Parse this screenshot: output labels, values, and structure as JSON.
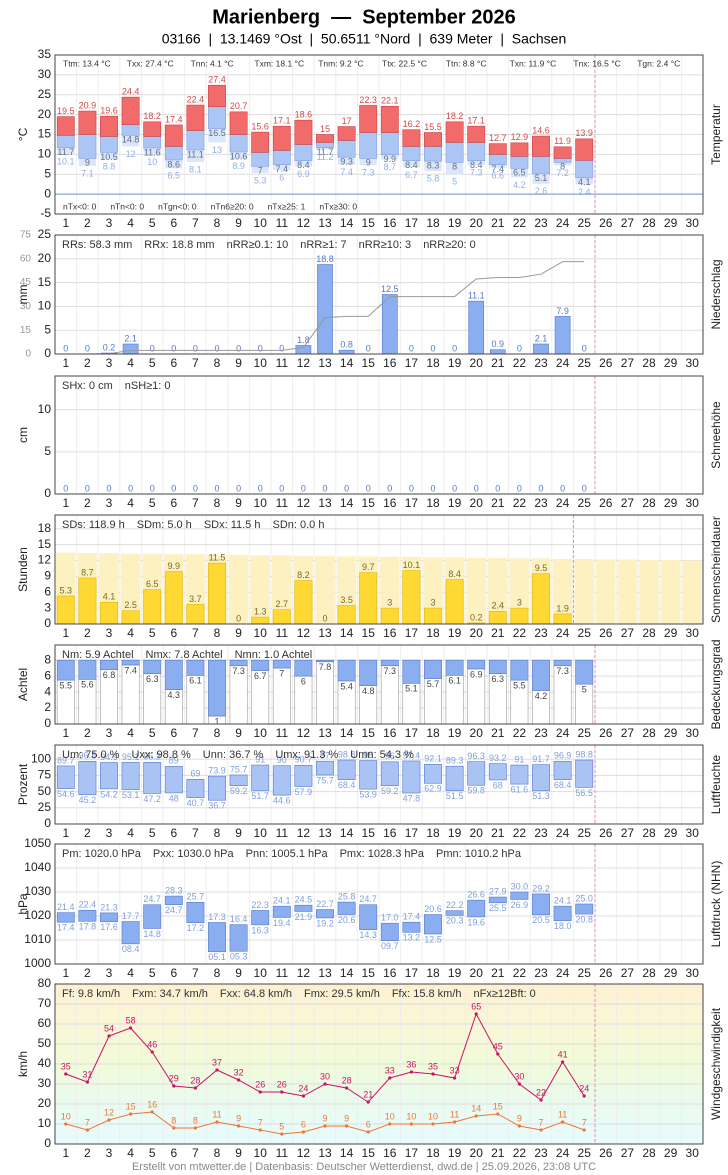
{
  "title": "Marienberg  —  September 2026",
  "subtitle": "03166  |  13.1469 °Ost  |  50.6511 °Nord  |  639 Meter  |  Sachsen",
  "footer": "Erstellt von mtwetter.de | Datenbasis: Deutscher Wetterdienst, dwd.de | 25.09.2026, 23:08 UTC",
  "chart_data": [
    {
      "type": "temperature",
      "y_label": "°C",
      "side_label": "Temperatur",
      "stats": [
        "Ttm: 13.4 °C",
        "Txx: 27.4 °C",
        "Tnn: 4.1 °C",
        "Txm: 18.1 °C",
        "Tnm: 9.2 °C",
        "Ttx: 22.5 °C",
        "Ttn: 8.8 °C",
        "Txn: 11.9 °C",
        "Tnx: 16.5 °C",
        "Tgn: 2.4 °C"
      ],
      "footer_stats": [
        "nTx<0: 0",
        "nTn<0: 0",
        "nTgn<0: 0",
        "nTn6≥20: 0",
        "nTx≥25: 1",
        "nTx≥30: 0"
      ],
      "categories": [
        1,
        2,
        3,
        4,
        5,
        6,
        7,
        8,
        9,
        10,
        11,
        12,
        13,
        14,
        15,
        16,
        17,
        18,
        19,
        20,
        21,
        22,
        23,
        24,
        25,
        26,
        27,
        28,
        29,
        30
      ],
      "ylim": [
        -5,
        35
      ],
      "yticks": [
        -5,
        0,
        5,
        10,
        15,
        20,
        25,
        30,
        35
      ],
      "grid": true,
      "series": [
        {
          "color": "#f26b6b",
          "values": [
            19.5,
            20.9,
            19.6,
            24.4,
            18.2,
            17.4,
            22.4,
            27.4,
            20.7,
            15.6,
            17.1,
            18.6,
            15.0,
            17.0,
            22.3,
            22.1,
            16.2,
            15.5,
            18.2,
            17.1,
            12.7,
            12.9,
            14.6,
            11.9,
            13.9,
            null,
            null,
            null,
            null,
            null
          ]
        },
        {
          "color": "#abc5f5",
          "values": [
            14.8,
            15.0,
            14.5,
            17.5,
            14.5,
            12.0,
            16.0,
            22.0,
            15.0,
            10.5,
            11.0,
            12.5,
            13.0,
            13.5,
            15.5,
            15.5,
            12.0,
            12.0,
            13.0,
            13.0,
            10.0,
            9.5,
            9.5,
            9.0,
            8.5,
            null,
            null,
            null,
            null,
            null
          ]
        },
        {
          "color": "#5f6f86",
          "values": [
            11.7,
            9.0,
            10.5,
            14.8,
            11.6,
            8.6,
            11.1,
            16.5,
            10.6,
            7.0,
            7.4,
            8.4,
            11.7,
            9.3,
            9.0,
            9.9,
            8.4,
            8.3,
            8.0,
            8.4,
            7.4,
            6.5,
            5.1,
            8.0,
            4.1,
            null,
            null,
            null,
            null,
            null
          ]
        },
        {
          "color": "#8fb0e6",
          "values": [
            10.1,
            7.1,
            8.8,
            12.0,
            10.0,
            6.5,
            8.1,
            13.0,
            8.9,
            5.3,
            6.0,
            6.9,
            11.2,
            7.4,
            7.3,
            8.7,
            6.7,
            5.8,
            5.0,
            7.3,
            6.6,
            4.2,
            2.6,
            7.2,
            2.4,
            null,
            null,
            null,
            null,
            null
          ]
        }
      ]
    },
    {
      "type": "bar",
      "y_label": "mm",
      "side_label": "Niederschlag",
      "stats": [
        "RRs: 58.3 mm",
        "RRx: 18.8 mm",
        "nRR≥0.1: 10",
        "nRR≥1: 7",
        "nRR≥10: 3",
        "nRR≥20: 0"
      ],
      "categories": [
        1,
        2,
        3,
        4,
        5,
        6,
        7,
        8,
        9,
        10,
        11,
        12,
        13,
        14,
        15,
        16,
        17,
        18,
        19,
        20,
        21,
        22,
        23,
        24,
        25,
        26,
        27,
        28,
        29,
        30
      ],
      "ylim": [
        0,
        25
      ],
      "yticks": [
        0,
        5,
        10,
        15,
        20,
        25
      ],
      "y2lim": [
        0,
        75
      ],
      "y2ticks": [
        0,
        15,
        30,
        45,
        60,
        75
      ],
      "y2_color": "#999999",
      "grid": true,
      "series": [
        {
          "color": "#8aaef0",
          "values": [
            0,
            0,
            0.2,
            2.1,
            0,
            0,
            0,
            0,
            0,
            0,
            0,
            1.8,
            18.8,
            0.8,
            0,
            12.5,
            0,
            0,
            0,
            11.1,
            0.9,
            0,
            2.1,
            7.9,
            0,
            null,
            null,
            null,
            null,
            null
          ]
        }
      ]
    },
    {
      "type": "bar",
      "y_label": "cm",
      "side_label": "Schneehöhe",
      "stats": [
        "SHx: 0 cm",
        "nSH≥1: 0"
      ],
      "categories": [
        1,
        2,
        3,
        4,
        5,
        6,
        7,
        8,
        9,
        10,
        11,
        12,
        13,
        14,
        15,
        16,
        17,
        18,
        19,
        20,
        21,
        22,
        23,
        24,
        25,
        26,
        27,
        28,
        29,
        30
      ],
      "ylim": [
        0,
        14
      ],
      "yticks": [
        0,
        5,
        10
      ],
      "grid": true,
      "series": [
        {
          "color": "#8aaef0",
          "values": [
            0,
            0,
            0,
            0,
            0,
            0,
            0,
            0,
            0,
            0,
            0,
            0,
            0,
            0,
            0,
            0,
            0,
            0,
            0,
            0,
            0,
            0,
            0,
            0,
            0,
            null,
            null,
            null,
            null,
            null
          ]
        }
      ]
    },
    {
      "type": "sun",
      "y_label": "Stunden",
      "side_label": "Sonnenscheindauer",
      "stats": [
        "SDs: 118.9 h",
        "SDm: 5.0 h",
        "SDx: 11.5 h",
        "SDn: 0.0 h"
      ],
      "categories": [
        1,
        2,
        3,
        4,
        5,
        6,
        7,
        8,
        9,
        10,
        11,
        12,
        13,
        14,
        15,
        16,
        17,
        18,
        19,
        20,
        21,
        22,
        23,
        24,
        25,
        26,
        27,
        28,
        29,
        30
      ],
      "ylim": [
        0,
        20.6
      ],
      "yticks": [
        0,
        3,
        6,
        9,
        12,
        15,
        18
      ],
      "grid": true,
      "series": [
        {
          "color": "#fdf1c2",
          "values": [
            13.5,
            13.4,
            13.4,
            13.3,
            13.3,
            13.2,
            13.2,
            13.1,
            13.1,
            13.0,
            13.0,
            12.9,
            12.9,
            12.8,
            12.8,
            12.7,
            12.7,
            12.6,
            12.6,
            12.5,
            12.5,
            12.4,
            12.4,
            12.3,
            12.3,
            12.2,
            12.2,
            12.1,
            12.1,
            12.0
          ]
        },
        {
          "color": "#ffd933",
          "values": [
            5.3,
            8.7,
            4.1,
            2.5,
            6.5,
            9.9,
            3.7,
            11.5,
            0,
            1.3,
            2.7,
            8.2,
            0,
            3.5,
            9.7,
            3.0,
            10.1,
            3.0,
            8.4,
            0.2,
            2.4,
            3.0,
            9.5,
            1.9,
            null,
            null,
            null,
            null,
            null,
            null
          ]
        }
      ]
    },
    {
      "type": "cloud",
      "y_label": "Achtel",
      "side_label": "Bedeckungsgrad",
      "stats": [
        "Nm: 5.9 Achtel",
        "Nmx: 7.8 Achtel",
        "Nmn: 1.0 Achtel"
      ],
      "categories": [
        1,
        2,
        3,
        4,
        5,
        6,
        7,
        8,
        9,
        10,
        11,
        12,
        13,
        14,
        15,
        16,
        17,
        18,
        19,
        20,
        21,
        22,
        23,
        24,
        25,
        26,
        27,
        28,
        29,
        30
      ],
      "ylim": [
        0,
        9.9
      ],
      "yticks": [
        0,
        2,
        4,
        6,
        8
      ],
      "full_scale": 8,
      "grid": true,
      "series": [
        {
          "color": "#8aaef0",
          "values": [
            5.5,
            5.6,
            6.8,
            7.4,
            6.3,
            4.3,
            6.1,
            1.0,
            7.3,
            6.7,
            7.0,
            6.0,
            7.8,
            5.4,
            4.8,
            7.3,
            5.1,
            5.7,
            6.1,
            6.9,
            6.3,
            5.5,
            4.2,
            7.3,
            5.0,
            null,
            null,
            null,
            null,
            null
          ]
        }
      ]
    },
    {
      "type": "range",
      "y_label": "Prozent",
      "side_label": "Luftfeuchte",
      "stats": [
        "Um: 75.0 %",
        "Uxx: 98.8 %",
        "Unn: 36.7 %",
        "Umx: 91.3 %",
        "Umn: 54.3 %"
      ],
      "categories": [
        1,
        2,
        3,
        4,
        5,
        6,
        7,
        8,
        9,
        10,
        11,
        12,
        13,
        14,
        15,
        16,
        17,
        18,
        19,
        20,
        21,
        22,
        23,
        24,
        25,
        26,
        27,
        28,
        29,
        30
      ],
      "ylim": [
        0,
        122
      ],
      "yticks": [
        0,
        25,
        50,
        75,
        100
      ],
      "grid": true,
      "series": [
        {
          "color": "#a9c3f5",
          "values": [
            89.7,
            96.8,
            94.9,
            95.1,
            95.2,
            89.0,
            69.0,
            73.9,
            75.7,
            91.0,
            90.0,
            90.7,
            97.0,
            98.8,
            98.0,
            96.0,
            97.4,
            92.1,
            89.3,
            96.3,
            93.2,
            91.0,
            91.7,
            96.9,
            98.8,
            null,
            null,
            null,
            null,
            null
          ]
        },
        {
          "color": "#a9c3f5",
          "values": [
            54.6,
            45.2,
            54.2,
            53.1,
            47.2,
            48.0,
            40.7,
            36.7,
            59.2,
            51.7,
            44.6,
            57.9,
            75.7,
            68.4,
            53.9,
            59.2,
            47.8,
            62.9,
            51.5,
            59.8,
            68.0,
            61.6,
            51.3,
            68.4,
            56.5,
            null,
            null,
            null,
            null,
            null
          ]
        }
      ]
    },
    {
      "type": "range",
      "y_label": "hPa",
      "side_label": "Luftdruck (NHN)",
      "stats": [
        "Pm: 1020.0 hPa",
        "Pxx: 1030.0 hPa",
        "Pnn: 1005.1 hPa",
        "Pmx: 1028.3 hPa",
        "Pmn: 1010.2 hPa"
      ],
      "categories": [
        1,
        2,
        3,
        4,
        5,
        6,
        7,
        8,
        9,
        10,
        11,
        12,
        13,
        14,
        15,
        16,
        17,
        18,
        19,
        20,
        21,
        22,
        23,
        24,
        25,
        26,
        27,
        28,
        29,
        30
      ],
      "ylim": [
        1000,
        1050
      ],
      "yticks": [
        1000,
        1010,
        1020,
        1030,
        1040,
        1050
      ],
      "grid": true,
      "series": [
        {
          "color": "#8aaef0",
          "values": [
            1021.4,
            1022.4,
            1021.3,
            1017.7,
            1024.7,
            1028.3,
            1025.7,
            1017.3,
            1016.4,
            1022.3,
            1024.1,
            1024.5,
            1022.7,
            1025.8,
            1024.7,
            1017.0,
            1017.4,
            1020.6,
            1022.2,
            1026.6,
            1027.9,
            1030.0,
            1029.2,
            1024.1,
            1025.0,
            null,
            null,
            null,
            null,
            null
          ],
          "value_labels": [
            "21.4",
            "22.4",
            "21.3",
            "17.7",
            "24.7",
            "28.3",
            "25.7",
            "17.3",
            "16.4",
            "22.3",
            "24.1",
            "24.5",
            "22.7",
            "25.8",
            "24.7",
            "17.0",
            "17.4",
            "20.6",
            "22.2",
            "26.6",
            "27.9",
            "30.0",
            "29.2",
            "24.1",
            "25.0",
            null,
            null,
            null,
            null,
            null
          ]
        },
        {
          "color": "#8aaef0",
          "values": [
            1017.4,
            1017.8,
            1017.6,
            1008.4,
            1014.8,
            1024.7,
            1017.2,
            1005.1,
            1005.3,
            1016.3,
            1019.4,
            1021.9,
            1019.2,
            1020.6,
            1014.3,
            1009.7,
            1013.2,
            1012.5,
            1020.3,
            1019.6,
            1025.5,
            1026.9,
            1020.5,
            1018.0,
            1020.8,
            null,
            null,
            null,
            null,
            null
          ],
          "value_labels": [
            "17.4",
            "17.8",
            "17.6",
            "08.4",
            "14.8",
            "24.7",
            "17.2",
            "05.1",
            "05.3",
            "16.3",
            "19.4",
            "21.9",
            "19.2",
            "20.6",
            "14.3",
            "09.7",
            "13.2",
            "12.5",
            "20.3",
            "19.6",
            "25.5",
            "26.9",
            "20.5",
            "18.0",
            "20.8",
            null,
            null,
            null,
            null,
            null
          ]
        }
      ]
    },
    {
      "type": "line",
      "y_label": "km/h",
      "side_label": "Windgeschwindigkeit",
      "stats": [
        "Ff: 9.8 km/h",
        "Fxm: 34.7 km/h",
        "Fxx: 64.8 km/h",
        "Fmx: 29.5 km/h",
        "Ffx: 15.8 km/h",
        "nFx≥12Bft: 0"
      ],
      "categories": [
        1,
        2,
        3,
        4,
        5,
        6,
        7,
        8,
        9,
        10,
        11,
        12,
        13,
        14,
        15,
        16,
        17,
        18,
        19,
        20,
        21,
        22,
        23,
        24,
        25,
        26,
        27,
        28,
        29,
        30
      ],
      "ylim": [
        0,
        80
      ],
      "yticks": [
        0,
        10,
        20,
        30,
        40,
        50,
        60,
        70,
        80
      ],
      "grid": true,
      "series": [
        {
          "color": "#cc1166",
          "values": [
            35,
            31,
            54,
            58,
            46,
            29,
            28,
            37,
            32,
            26,
            26,
            24,
            30,
            28,
            21,
            33,
            36,
            35,
            33,
            65,
            45,
            30,
            22,
            41,
            24,
            null,
            null,
            null,
            null,
            null
          ]
        },
        {
          "color": "#ee7733",
          "values": [
            10,
            7,
            12,
            15,
            16,
            8,
            8,
            11,
            9,
            7,
            5,
            6,
            9,
            9,
            6,
            10,
            10,
            10,
            11,
            14,
            15,
            9,
            7,
            11,
            7,
            null,
            null,
            null,
            null,
            null
          ]
        }
      ]
    }
  ]
}
